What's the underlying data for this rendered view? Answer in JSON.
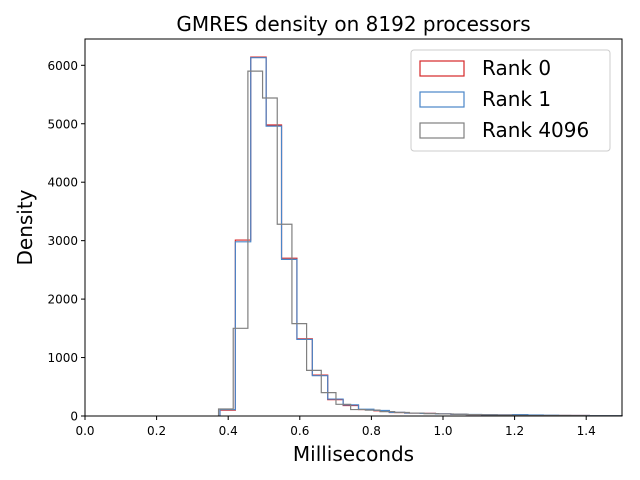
{
  "chart_data": {
    "type": "histogram",
    "title": "GMRES density on 8192 processors",
    "xlabel": "Milliseconds",
    "ylabel": "Density",
    "xlim": [
      0.0,
      1.5
    ],
    "ylim": [
      0,
      6450
    ],
    "xticks": [
      0.0,
      0.2,
      0.4,
      0.6,
      0.8,
      1.0,
      1.2,
      1.4
    ],
    "xtick_labels": [
      "0.0",
      "0.2",
      "0.4",
      "0.6",
      "0.8",
      "1.0",
      "1.2",
      "1.4"
    ],
    "yticks": [
      0,
      1000,
      2000,
      3000,
      4000,
      5000,
      6000
    ],
    "ytick_labels": [
      "0",
      "1000",
      "2000",
      "3000",
      "4000",
      "5000",
      "6000"
    ],
    "grid": false,
    "legend_position": "upper right",
    "series": [
      {
        "name": "Rank 0",
        "color": "#d62728",
        "edges": [
          0.377,
          0.42,
          0.463,
          0.506,
          0.549,
          0.592,
          0.635,
          0.678,
          0.721,
          0.764,
          0.807,
          0.85,
          0.893,
          0.936,
          0.979,
          1.022,
          1.065,
          1.108,
          1.151,
          1.194,
          1.237,
          1.28,
          1.323,
          1.366,
          1.409,
          1.452,
          1.5
        ],
        "values": [
          100,
          3010,
          6140,
          4980,
          2700,
          1320,
          700,
          280,
          180,
          110,
          90,
          60,
          50,
          45,
          35,
          30,
          25,
          20,
          18,
          15,
          12,
          10,
          9,
          8,
          7,
          6
        ]
      },
      {
        "name": "Rank 1",
        "color": "#4a86c8",
        "edges": [
          0.377,
          0.42,
          0.463,
          0.506,
          0.549,
          0.592,
          0.635,
          0.678,
          0.721,
          0.764,
          0.807,
          0.85,
          0.893,
          0.936,
          0.979,
          1.022,
          1.065,
          1.108,
          1.151,
          1.194,
          1.237,
          1.28,
          1.323,
          1.366,
          1.409,
          1.452,
          1.5
        ],
        "values": [
          110,
          2980,
          6130,
          4960,
          2680,
          1310,
          690,
          290,
          190,
          115,
          95,
          62,
          50,
          44,
          36,
          30,
          26,
          21,
          19,
          25,
          18,
          14,
          10,
          8,
          7,
          6
        ]
      },
      {
        "name": "Rank 4096",
        "color": "#808080",
        "edges": [
          0.373,
          0.414,
          0.455,
          0.496,
          0.537,
          0.578,
          0.619,
          0.66,
          0.701,
          0.742,
          0.783,
          0.824,
          0.865,
          0.906,
          0.947,
          0.988,
          1.029,
          1.07,
          1.111,
          1.152,
          1.193,
          1.234,
          1.275,
          1.316,
          1.357,
          1.398,
          1.5
        ],
        "values": [
          120,
          1500,
          5900,
          5440,
          3280,
          1580,
          780,
          400,
          200,
          110,
          100,
          75,
          60,
          50,
          40,
          35,
          30,
          25,
          20,
          15,
          12,
          10,
          9,
          8,
          7,
          5
        ]
      }
    ]
  }
}
